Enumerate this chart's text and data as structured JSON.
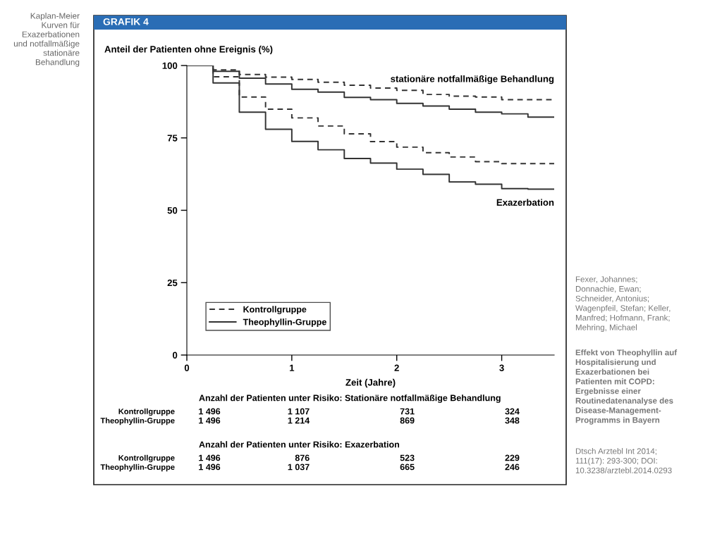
{
  "chart_data": {
    "type": "step",
    "title": "GRAFIK 4",
    "ylabel": "Anteil der Patienten ohne Ereignis (%)",
    "xlabel": "Zeit (Jahre)",
    "xlim": [
      0,
      3.5
    ],
    "xticks": [
      0,
      1,
      2,
      3
    ],
    "ylim": [
      0,
      100
    ],
    "yticks": [
      0,
      25,
      50,
      75,
      100
    ],
    "grid": false,
    "legend": "bottom left",
    "series": [
      {
        "name": "Kontrollgruppe",
        "color": "#333333",
        "line_style": "dashed",
        "x": [
          0,
          0.25,
          0.5,
          0.75,
          1,
          1.25,
          1.5,
          1.75,
          2,
          2.25,
          2.5,
          2.75,
          3,
          3.25,
          3.5
        ],
        "values": [
          100,
          98.5,
          96.9,
          96.0,
          95.2,
          94.2,
          93.2,
          92.2,
          91.4,
          90.0,
          89.4,
          89.1,
          88.2,
          88.2,
          88.2
        ]
      },
      {
        "name": "Theophyllin-Gruppe",
        "color": "#333333",
        "line_style": "solid",
        "x": [
          0,
          0.25,
          0.5,
          0.75,
          1,
          1.25,
          1.5,
          1.75,
          2,
          2.25,
          2.5,
          2.75,
          3,
          3.25,
          3.5
        ],
        "values": [
          100,
          98.0,
          95.6,
          93.6,
          91.8,
          90.8,
          89.0,
          88.2,
          86.9,
          86.0,
          84.9,
          83.9,
          83.3,
          82.2,
          82.2
        ]
      },
      {
        "color": "#333333",
        "line_style": "dashed",
        "x": [
          0,
          0.25,
          0.5,
          0.75,
          1,
          1.25,
          1.5,
          1.75,
          2,
          2.25,
          2.5,
          2.75,
          3,
          3.25,
          3.5
        ],
        "values": [
          100,
          96.1,
          89.1,
          84.9,
          81.9,
          79.1,
          76.4,
          73.7,
          71.8,
          69.9,
          68.4,
          66.8,
          66.1,
          66.1,
          66.1
        ]
      },
      {
        "color": "#333333",
        "line_style": "solid",
        "x": [
          0,
          0.25,
          0.5,
          0.75,
          1,
          1.25,
          1.5,
          1.75,
          2,
          2.25,
          2.5,
          2.75,
          3,
          3.25,
          3.5
        ],
        "values": [
          100,
          94.0,
          83.9,
          78.0,
          73.8,
          70.9,
          67.9,
          66.3,
          64.2,
          62.4,
          59.8,
          59.0,
          57.5,
          57.3,
          57.3
        ]
      }
    ],
    "annotations": [
      {
        "text": "stationäre notfallmäßige Behandlung",
        "x": 3.5,
        "y": 88.2
      },
      {
        "text": "Exazerbation",
        "x": 3.5,
        "y": 57.3
      },
      "Kaplan-Meier\nKurven für\nExazerbationen\nund notfallmäßige\nstationäre\nBehandlung",
      "Fexer, Johannes;\nDonnachie, Ewan;\nSchneider, Antonius;\nWagenpfeil, Stefan; Keller,\nManfred; Hofmann, Frank;\nMehring, Michael",
      "Effekt von Theophyllin auf\nHospitalisierung und\nExazerbationen bei\nPatienten mit COPD:\nErgebnisse einer\nRoutinedatenanalyse des\nDisease-Management-\nProgramms in Bayern",
      "Dtsch Arztebl Int 2014;\n111(17): 293-300; DOI:\n10.3238/arztebl.2014.0293",
      "Anzahl der Patienten unter Risiko: Stationäre notfallmäßige Behandlung",
      "Kontrollgruppe",
      "1 496",
      "1 107",
      "731",
      "324",
      "Theophyllin-Gruppe",
      "1 496",
      "1 214",
      "869",
      "348",
      "Anzahl der Patienten unter Risiko: Exazerbation",
      "Kontrollgruppe",
      "1 496",
      "876",
      "523",
      "229",
      "Theophyllin-Gruppe",
      "1 496",
      "1 037",
      "665",
      "246"
    ]
  }
}
